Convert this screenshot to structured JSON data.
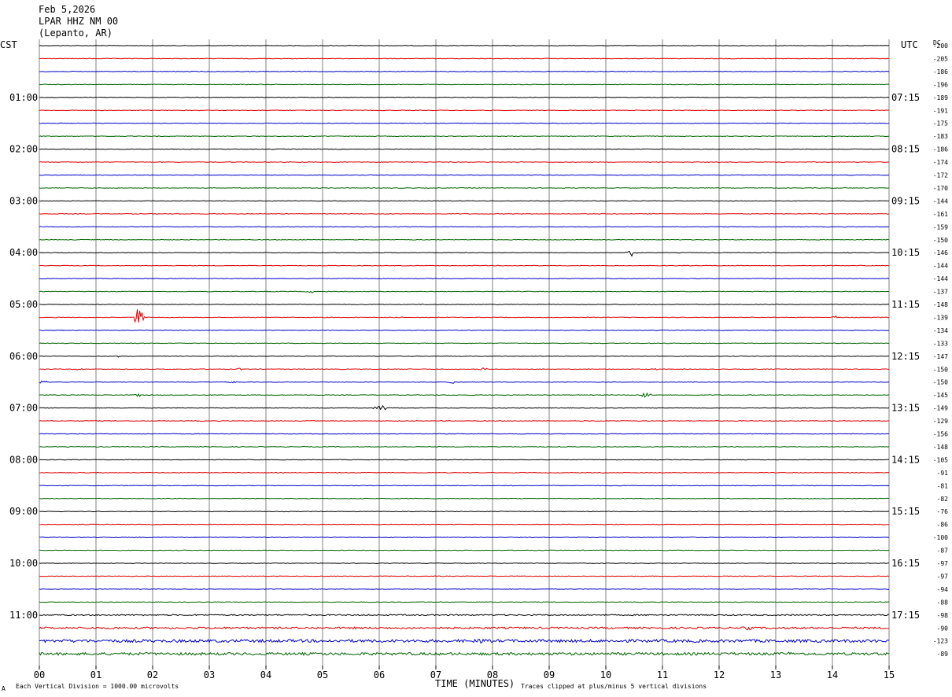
{
  "header": {
    "date": "Feb 5,2026",
    "station": "LPAR HHZ NM 00",
    "location": "(Lepanto, AR)"
  },
  "left_timezone": "CST",
  "right_timezone": "UTC",
  "dc_header": "DC",
  "footer": {
    "scale": "Each Vertical Division = 1000.00 microvolts",
    "xlabel": "TIME (MINUTES)",
    "clip_note": "Traces clipped at plus/minus 5 vertical divisions",
    "corner_mark": "A"
  },
  "colors": {
    "black": "#000000",
    "red": "#e00000",
    "blue": "#0000c8",
    "green": "#006400",
    "grid": "#808080"
  },
  "chart_data": {
    "type": "line",
    "title": "LPAR HHZ NM 00",
    "xlabel": "TIME (MINUTES)",
    "xlim": [
      0,
      15
    ],
    "x_ticks": [
      "00",
      "01",
      "02",
      "03",
      "04",
      "05",
      "06",
      "07",
      "08",
      "09",
      "10",
      "11",
      "12",
      "13",
      "14",
      "15"
    ],
    "trace_minutes": 15,
    "trace_count": 48,
    "color_cycle": [
      "black",
      "red",
      "blue",
      "green"
    ],
    "left_hour_labels": [
      {
        "trace": 4,
        "label": "01:00"
      },
      {
        "trace": 8,
        "label": "02:00"
      },
      {
        "trace": 12,
        "label": "03:00"
      },
      {
        "trace": 16,
        "label": "04:00"
      },
      {
        "trace": 20,
        "label": "05:00"
      },
      {
        "trace": 24,
        "label": "06:00"
      },
      {
        "trace": 28,
        "label": "07:00"
      },
      {
        "trace": 32,
        "label": "08:00"
      },
      {
        "trace": 36,
        "label": "09:00"
      },
      {
        "trace": 40,
        "label": "10:00"
      },
      {
        "trace": 44,
        "label": "11:00"
      }
    ],
    "right_hour_labels": [
      {
        "trace": 4,
        "label": "07:15"
      },
      {
        "trace": 8,
        "label": "08:15"
      },
      {
        "trace": 12,
        "label": "09:15"
      },
      {
        "trace": 16,
        "label": "10:15"
      },
      {
        "trace": 20,
        "label": "11:15"
      },
      {
        "trace": 24,
        "label": "12:15"
      },
      {
        "trace": 28,
        "label": "13:15"
      },
      {
        "trace": 32,
        "label": "14:15"
      },
      {
        "trace": 36,
        "label": "15:15"
      },
      {
        "trace": 40,
        "label": "16:15"
      },
      {
        "trace": 44,
        "label": "17:15"
      }
    ],
    "dc_offsets": [
      -200,
      -205,
      -186,
      -196,
      -189,
      -191,
      -175,
      -183,
      -186,
      -174,
      -172,
      -170,
      -144,
      -161,
      -159,
      -150,
      -146,
      -144,
      -144,
      -137,
      -148,
      -139,
      -134,
      -133,
      -147,
      -150,
      -150,
      -145,
      -149,
      -129,
      -156,
      -148,
      -105,
      -91,
      -81,
      -82,
      -76,
      -86,
      -100,
      -87,
      -97,
      -97,
      -94,
      -88,
      -98,
      -90,
      -123,
      -89
    ],
    "events": [
      {
        "trace": 16,
        "minute": 10.45,
        "amplitude": 1.3
      },
      {
        "trace": 19,
        "minute": 4.8,
        "amplitude": 0.5
      },
      {
        "trace": 21,
        "minute": 1.75,
        "amplitude": 4.0
      },
      {
        "trace": 21,
        "minute": 14.05,
        "amplitude": 0.6
      },
      {
        "trace": 24,
        "minute": 1.4,
        "amplitude": 0.3
      },
      {
        "trace": 25,
        "minute": 0.7,
        "amplitude": 0.4
      },
      {
        "trace": 25,
        "minute": 3.55,
        "amplitude": 0.4
      },
      {
        "trace": 25,
        "minute": 7.85,
        "amplitude": 0.6
      },
      {
        "trace": 25,
        "minute": 10.9,
        "amplitude": 0.3
      },
      {
        "trace": 26,
        "minute": 0.05,
        "amplitude": 0.8
      },
      {
        "trace": 26,
        "minute": 3.4,
        "amplitude": 0.3
      },
      {
        "trace": 26,
        "minute": 7.25,
        "amplitude": 0.8
      },
      {
        "trace": 27,
        "minute": 1.75,
        "amplitude": 0.6
      },
      {
        "trace": 27,
        "minute": 10.7,
        "amplitude": 1.4
      },
      {
        "trace": 28,
        "minute": 5.9,
        "amplitude": 0.3
      },
      {
        "trace": 28,
        "minute": 6.05,
        "amplitude": 1.2
      },
      {
        "trace": 45,
        "minute": 12.5,
        "amplitude": 0.7
      },
      {
        "trace": 46,
        "minute": 7.75,
        "amplitude": 1.2
      },
      {
        "trace": 47,
        "minute": 13.2,
        "amplitude": 0.9
      }
    ],
    "noisy_traces": [
      {
        "trace": 44,
        "level": 0.25
      },
      {
        "trace": 45,
        "level": 0.35
      },
      {
        "trace": 46,
        "level": 0.55
      },
      {
        "trace": 47,
        "level": 0.5
      }
    ],
    "vertical_grid_minutes": [
      0,
      1,
      2,
      3,
      4,
      5,
      6,
      7,
      8,
      9,
      10,
      11,
      12,
      13,
      14,
      15
    ]
  }
}
